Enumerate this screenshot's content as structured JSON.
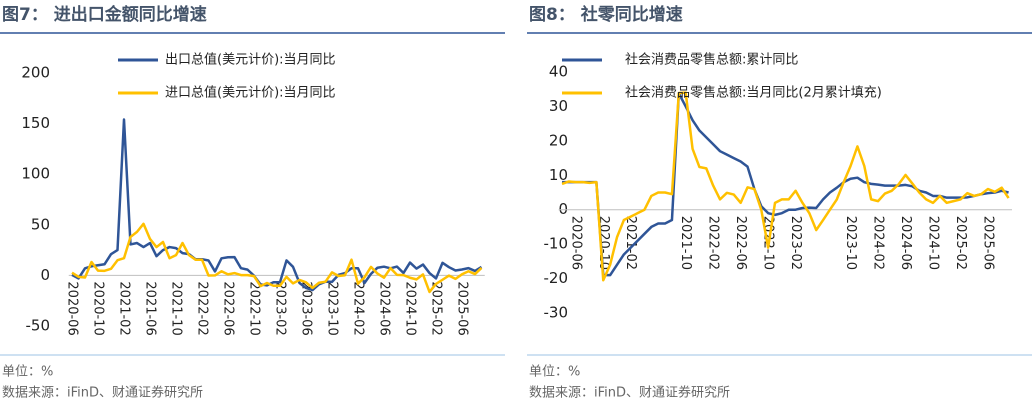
{
  "chart_data": [
    {
      "type": "line",
      "title": "图7： 进出口金额同比增速",
      "note": "单位：%",
      "source": "数据来源：iFinD、财通证券研究所",
      "categories": [
        "2020-06",
        null,
        null,
        null,
        "2020-10",
        null,
        null,
        null,
        "2021-02",
        null,
        null,
        null,
        "2021-06",
        null,
        null,
        null,
        "2021-10",
        null,
        null,
        null,
        "2022-02",
        null,
        null,
        null,
        "2022-06",
        null,
        null,
        null,
        "2022-10",
        null,
        null,
        null,
        "2023-02",
        null,
        null,
        null,
        "2023-06",
        null,
        null,
        null,
        "2023-10",
        null,
        null,
        null,
        "2024-02",
        null,
        null,
        null,
        "2024-06",
        null,
        null,
        null,
        "2024-10",
        null,
        null,
        null,
        "2025-02",
        null,
        null,
        null,
        "2025-06",
        null,
        null,
        null
      ],
      "series": [
        {
          "name": "出口总值(美元计价):当月同比",
          "color": "#2f5597",
          "values": [
            0.5,
            -3,
            7,
            9,
            10,
            11,
            21,
            25,
            154,
            30.6,
            32,
            28,
            32,
            19,
            25,
            28,
            27,
            22,
            21,
            16,
            16,
            14.7,
            3.9,
            16.9,
            17.9,
            18,
            7.1,
            5.7,
            -0.3,
            -8.9,
            -9.9,
            -6.8,
            -6.8,
            14.8,
            8.5,
            -7.5,
            -12.4,
            -14.5,
            -8.8,
            -6.2,
            -6.4,
            0.5,
            2.3,
            7.1,
            7.1,
            -7.5,
            1.5,
            7.6,
            8.6,
            7,
            8.7,
            2.4,
            12.7,
            6.7,
            10.7,
            2.3,
            -3,
            12.4,
            8.1,
            4.8,
            5.8,
            7.2,
            4.4,
            8.3
          ]
        },
        {
          "name": "进口总值(美元计价):当月同比",
          "color": "#ffc000",
          "values": [
            2.7,
            -1.4,
            -2.1,
            13.2,
            4.7,
            4.5,
            6.5,
            15,
            17,
            38,
            43,
            51,
            36,
            28,
            33,
            17,
            20,
            32,
            20,
            15.5,
            15.5,
            -0.1,
            0,
            4.1,
            1,
            2.3,
            0.3,
            0.3,
            -0.7,
            -10.6,
            -7.5,
            -10.2,
            -10.2,
            -1.4,
            -7.9,
            -4.5,
            -6.8,
            -12.4,
            -7.3,
            -6.2,
            3,
            -0.6,
            0.2,
            15.5,
            -8.2,
            -1.9,
            8.4,
            1.8,
            -2.3,
            7.2,
            0.5,
            0.3,
            -2.3,
            -3.9,
            1,
            -16.3,
            -8.4,
            -4.3,
            -0.2,
            -3.4,
            1.1,
            4.1,
            1.3,
            7.4
          ]
        }
      ],
      "ylim": [
        -50,
        200
      ],
      "yticks": [
        -50,
        0,
        50,
        100,
        150,
        200
      ]
    },
    {
      "type": "line",
      "title": "图8： 社零同比增速",
      "note": "单位：%",
      "source": "数据来源：iFinD、财通证券研究所",
      "categories": [
        null,
        null,
        "2020-06",
        null,
        null,
        null,
        "2020-10",
        null,
        null,
        null,
        "2021-02",
        null,
        null,
        null,
        null,
        null,
        null,
        null,
        "2021-10",
        null,
        null,
        null,
        "2022-02",
        null,
        null,
        null,
        "2022-06",
        null,
        null,
        null,
        "2022-10",
        null,
        null,
        null,
        "2023-02",
        null,
        null,
        null,
        null,
        null,
        null,
        null,
        "2023-10",
        null,
        null,
        null,
        "2024-02",
        null,
        null,
        null,
        "2024-06",
        null,
        null,
        null,
        "2024-10",
        null,
        null,
        null,
        "2025-02",
        null,
        null,
        null,
        "2025-06",
        null,
        null,
        null
      ],
      "series": [
        {
          "name": "社会消费品零售总额:累计同比",
          "color": "#2f5597",
          "values": [
            8,
            8,
            8,
            8,
            8,
            8,
            -19,
            -19,
            -16,
            -13,
            -11,
            -9,
            -7,
            -5,
            -4,
            -4,
            -3,
            33.8,
            30,
            26,
            23,
            21,
            19,
            17,
            16,
            15,
            14,
            12.5,
            6,
            1,
            -1,
            -1.5,
            -1,
            0,
            0,
            0.5,
            0.6,
            0.5,
            3,
            5,
            6.4,
            8,
            9,
            9.3,
            8,
            7.5,
            7.3,
            7,
            7,
            7,
            7.2,
            6.8,
            5.5,
            5,
            4,
            4,
            3.5,
            3.5,
            3.5,
            3.6,
            4,
            4.5,
            4.8,
            5,
            5.5,
            5
          ]
        },
        {
          "name": "社会消费品零售总额:当月同比(2月累计填充)",
          "color": "#ffc000",
          "values": [
            7.5,
            8.2,
            8,
            8,
            7.8,
            8,
            -20.5,
            -16,
            -8,
            -3,
            -2,
            -1,
            0,
            4,
            5,
            5,
            4.5,
            33.9,
            34,
            17.7,
            12.4,
            12,
            7,
            3,
            4.9,
            4.4,
            2,
            6.5,
            6,
            0,
            -11,
            2,
            3,
            3,
            5.5,
            2,
            -1,
            -5.9,
            -3,
            0,
            3,
            8,
            12.7,
            18.4,
            12.7,
            3,
            2.5,
            4.7,
            5.5,
            7.4,
            10.1,
            7.6,
            5,
            3,
            2,
            4,
            2,
            2.5,
            3,
            4.8,
            4,
            4.5,
            6,
            5.2,
            6.4,
            3.4
          ]
        }
      ],
      "ylim": [
        -30,
        40
      ],
      "yticks": [
        -30,
        -20,
        -10,
        0,
        10,
        20,
        30,
        40
      ]
    }
  ]
}
